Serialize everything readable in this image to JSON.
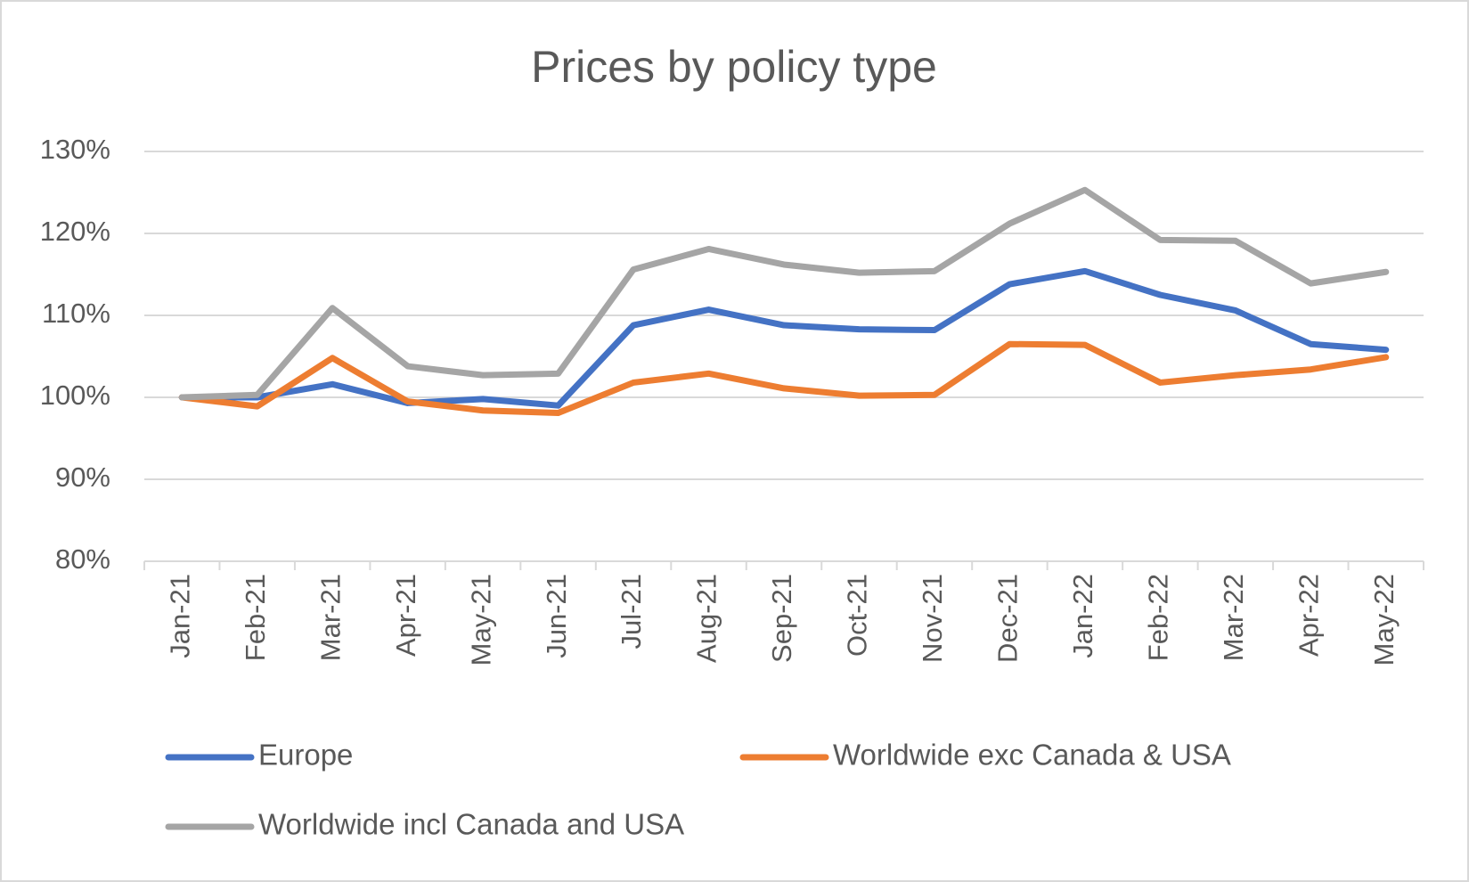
{
  "chart_data": {
    "type": "line",
    "title": "Prices by policy type",
    "categories": [
      "Jan-21",
      "Feb-21",
      "Mar-21",
      "Apr-21",
      "May-21",
      "Jun-21",
      "Jul-21",
      "Aug-21",
      "Sep-21",
      "Oct-21",
      "Nov-21",
      "Dec-21",
      "Jan-22",
      "Feb-22",
      "Mar-22",
      "Apr-22",
      "May-22"
    ],
    "series": [
      {
        "name": "Europe",
        "color": "#4472c4",
        "values": [
          100,
          100,
          101.6,
          99.3,
          99.8,
          99.0,
          108.8,
          110.7,
          108.8,
          108.3,
          108.2,
          113.8,
          115.4,
          112.5,
          110.6,
          106.5,
          105.8
        ]
      },
      {
        "name": "Worldwide exc Canada & USA",
        "color": "#ed7d31",
        "values": [
          100,
          98.9,
          104.8,
          99.5,
          98.4,
          98.1,
          101.8,
          102.9,
          101.1,
          100.2,
          100.3,
          106.5,
          106.4,
          101.8,
          102.7,
          103.4,
          104.9
        ]
      },
      {
        "name": "Worldwide incl Canada and USA",
        "color": "#a5a5a5",
        "values": [
          100,
          100.3,
          110.9,
          103.8,
          102.7,
          102.9,
          115.6,
          118.1,
          116.2,
          115.2,
          115.4,
          121.2,
          125.3,
          119.2,
          119.1,
          113.9,
          115.3
        ]
      }
    ],
    "ylim": [
      80,
      130
    ],
    "yticks": [
      {
        "value": 80,
        "label": "80%"
      },
      {
        "value": 90,
        "label": "90%"
      },
      {
        "value": 100,
        "label": "100%"
      },
      {
        "value": 110,
        "label": "110%"
      },
      {
        "value": 120,
        "label": "120%"
      },
      {
        "value": 130,
        "label": "130%"
      }
    ],
    "grid": true
  }
}
